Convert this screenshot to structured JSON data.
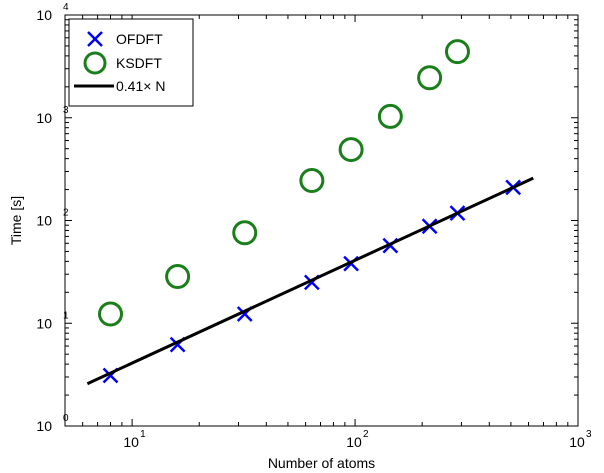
{
  "chart_data": {
    "type": "scatter",
    "xlabel": "Number of atoms",
    "ylabel": "Time [s]",
    "xscale": "log",
    "yscale": "log",
    "xlim": [
      5,
      1000
    ],
    "ylim": [
      1,
      10000
    ],
    "grid": false,
    "legend_position": "top-left",
    "x_ticks": [
      {
        "value": 10,
        "base": "10",
        "exp": "1"
      },
      {
        "value": 100,
        "base": "10",
        "exp": "2"
      },
      {
        "value": 1000,
        "base": "10",
        "exp": "3"
      }
    ],
    "y_ticks": [
      {
        "value": 1,
        "base": "10",
        "exp": "0"
      },
      {
        "value": 10,
        "base": "10",
        "exp": "1"
      },
      {
        "value": 100,
        "base": "10",
        "exp": "2"
      },
      {
        "value": 1000,
        "base": "10",
        "exp": "3"
      },
      {
        "value": 10000,
        "base": "10",
        "exp": "4"
      }
    ],
    "series": [
      {
        "name": "OFDFT",
        "marker": "x",
        "color": "#0000ff",
        "x": [
          8,
          16,
          32,
          64,
          96,
          144,
          216,
          288,
          512
        ],
        "y": [
          3.1,
          6.2,
          12.3,
          25,
          38,
          57,
          88,
          118,
          210
        ]
      },
      {
        "name": "KSDFT",
        "marker": "circle",
        "color": "#1a7f1a",
        "x": [
          8,
          16,
          32,
          64,
          96,
          144,
          216,
          288
        ],
        "y": [
          12.3,
          28.5,
          76,
          245,
          490,
          1030,
          2450,
          4400
        ]
      },
      {
        "name": "0.41× N",
        "marker": "line",
        "color": "#000000",
        "x": [
          6.3,
          630
        ],
        "y": [
          2.58,
          258.3
        ]
      }
    ]
  }
}
